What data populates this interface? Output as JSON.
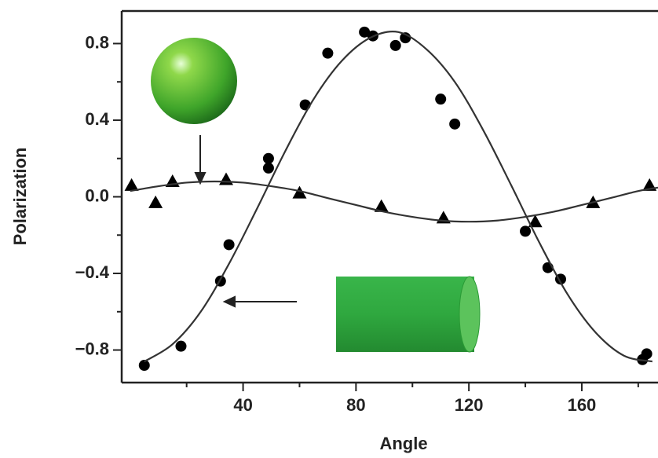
{
  "chart_data": {
    "type": "scatter",
    "xlabel": "Angle",
    "ylabel": "Polarization",
    "xlim": [
      -3,
      187
    ],
    "ylim": [
      -0.97,
      0.97
    ],
    "xticks": [
      40,
      80,
      120,
      160
    ],
    "xminor": [
      20,
      60,
      100,
      140,
      180
    ],
    "yticks": [
      {
        "value": -0.8,
        "label": "−0.8"
      },
      {
        "value": -0.4,
        "label": "−0.4"
      },
      {
        "value": 0,
        "label": "0.0"
      },
      0.4,
      0.8
    ],
    "yminor": [
      -0.6,
      -0.2,
      0.2,
      0.6
    ],
    "series": [
      {
        "style": "circle",
        "color": "#000000",
        "x": [
          5,
          18,
          32,
          35,
          49,
          49,
          62,
          70,
          83,
          86,
          94,
          97.5,
          110,
          115,
          140,
          148,
          152.5,
          181.5,
          183
        ],
        "values": [
          -0.88,
          -0.78,
          -0.44,
          -0.25,
          0.15,
          0.2,
          0.48,
          0.75,
          0.86,
          0.84,
          0.79,
          0.83,
          0.51,
          0.38,
          -0.18,
          -0.37,
          -0.43,
          -0.85,
          -0.82
        ]
      },
      {
        "style": "triangle",
        "color": "#000000",
        "x": [
          0.5,
          9,
          15,
          34,
          60,
          89,
          111,
          143.5,
          164,
          184
        ],
        "values": [
          0.06,
          -0.03,
          0.08,
          0.09,
          0.02,
          -0.05,
          -0.11,
          -0.13,
          -0.03,
          0.06
        ]
      },
      {
        "style": "line",
        "color": "#333333",
        "x": [
          5,
          15,
          25,
          35,
          45,
          55,
          65,
          75,
          85,
          95,
          105,
          115,
          125,
          135,
          145,
          155,
          165,
          175,
          185
        ],
        "values": [
          -0.86,
          -0.77,
          -0.6,
          -0.35,
          -0.06,
          0.24,
          0.51,
          0.71,
          0.83,
          0.86,
          0.77,
          0.6,
          0.35,
          0.06,
          -0.24,
          -0.51,
          -0.71,
          -0.83,
          -0.86
        ]
      },
      {
        "style": "line",
        "color": "#333333",
        "x": [
          0,
          10,
          20,
          30,
          40,
          50,
          60,
          70,
          80,
          90,
          100,
          110,
          120,
          130,
          140,
          150,
          160,
          170,
          180,
          187
        ],
        "values": [
          0.03,
          0.055,
          0.074,
          0.08,
          0.074,
          0.055,
          0.03,
          -0.007,
          -0.043,
          -0.078,
          -0.105,
          -0.124,
          -0.13,
          -0.124,
          -0.105,
          -0.078,
          -0.043,
          -0.007,
          0.03,
          0.048
        ]
      }
    ]
  }
}
